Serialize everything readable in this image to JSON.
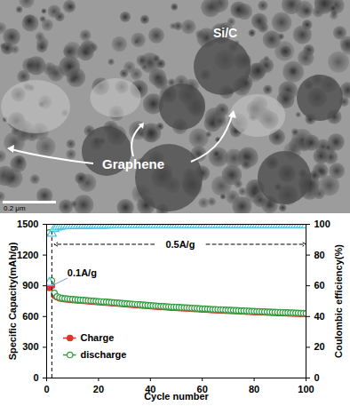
{
  "chart_data": {
    "type": "scatter",
    "x_label": "Cycle number",
    "y_label": "Specific Capacity(mAh/g)",
    "y2_label": "Coulombic efficiency(%)",
    "x": [
      1,
      2,
      3,
      4,
      5,
      6,
      7,
      8,
      9,
      10,
      11,
      12,
      13,
      14,
      15,
      16,
      17,
      18,
      19,
      20,
      21,
      22,
      23,
      24,
      25,
      26,
      27,
      28,
      29,
      30,
      31,
      32,
      33,
      34,
      35,
      36,
      37,
      38,
      39,
      40,
      41,
      42,
      43,
      44,
      45,
      46,
      47,
      48,
      49,
      50,
      51,
      52,
      53,
      54,
      55,
      56,
      57,
      58,
      59,
      60,
      61,
      62,
      63,
      64,
      65,
      66,
      67,
      68,
      69,
      70,
      71,
      72,
      73,
      74,
      75,
      76,
      77,
      78,
      79,
      80,
      81,
      82,
      83,
      84,
      85,
      86,
      87,
      88,
      89,
      90,
      91,
      92,
      93,
      94,
      95,
      96,
      97,
      98,
      99,
      100
    ],
    "series": [
      {
        "name": "Charge",
        "color": "#e8312a",
        "marker": "circle",
        "values": [
          880,
          900,
          805,
          789,
          779,
          774,
          770,
          767,
          764,
          762,
          760,
          758,
          756,
          754,
          752,
          750,
          748,
          746,
          744,
          742,
          740,
          738,
          736,
          734,
          732,
          730,
          728,
          726,
          724,
          722,
          720,
          718,
          716,
          714,
          712,
          710,
          708,
          706,
          704,
          702,
          700,
          698,
          696,
          694,
          693,
          692,
          690,
          688,
          687,
          686,
          684,
          682,
          681,
          680,
          678,
          676,
          675,
          674,
          672,
          670,
          669,
          668,
          666,
          664,
          663,
          662,
          661,
          660,
          658,
          657,
          656,
          655,
          654,
          652,
          651,
          650,
          649,
          648,
          646,
          645,
          644,
          643,
          642,
          641,
          640,
          639,
          638,
          637,
          636,
          635,
          634,
          633,
          632,
          631,
          630,
          629,
          628,
          627,
          626,
          625
        ]
      },
      {
        "name": "discharge",
        "color": "#2e9e3e",
        "marker": "circle_open",
        "values": [
          1420,
          950,
          830,
          795,
          785,
          780,
          776,
          773,
          770,
          768,
          766,
          764,
          762,
          760,
          758,
          756,
          754,
          752,
          750,
          748,
          746,
          744,
          742,
          740,
          738,
          736,
          734,
          732,
          730,
          728,
          726,
          724,
          722,
          720,
          718,
          716,
          714,
          712,
          710,
          708,
          706,
          704,
          702,
          700,
          699,
          698,
          696,
          694,
          693,
          692,
          690,
          688,
          687,
          686,
          684,
          682,
          681,
          680,
          678,
          676,
          675,
          674,
          672,
          670,
          669,
          668,
          667,
          666,
          664,
          663,
          662,
          661,
          660,
          658,
          657,
          656,
          655,
          654,
          652,
          651,
          650,
          649,
          648,
          647,
          646,
          645,
          644,
          643,
          642,
          641,
          640,
          639,
          638,
          637,
          636,
          635,
          634,
          633,
          632,
          631
        ]
      },
      {
        "color": "#4fc3e0",
        "marker": "triangle_open",
        "axis": "y2",
        "values": [
          62,
          94,
          97,
          98,
          98.5,
          98.8,
          99,
          99,
          99,
          99.1,
          99.1,
          99.1,
          99.2,
          99.2,
          99.2,
          99.2,
          99.3,
          99.3,
          99.3,
          99.3,
          99.3,
          99.3,
          99.3,
          99.3,
          99.4,
          99.4,
          99.4,
          99.4,
          99.4,
          99.4,
          99.4,
          99.4,
          99.4,
          99.4,
          99.4,
          99.4,
          99.4,
          99.4,
          99.4,
          99.4,
          99.4,
          99.4,
          99.4,
          99.4,
          99.4,
          99.4,
          99.4,
          99.4,
          99.4,
          99.4,
          99.5,
          99.5,
          99.5,
          99.5,
          99.5,
          99.5,
          99.5,
          99.5,
          99.5,
          99.5,
          99.5,
          99.5,
          99.5,
          99.5,
          99.5,
          99.5,
          99.5,
          99.5,
          99.5,
          99.5,
          99.5,
          99.5,
          99.5,
          99.5,
          99.5,
          99.5,
          99.5,
          99.5,
          99.5,
          99.5,
          99.5,
          99.5,
          99.5,
          99.5,
          99.5,
          99.5,
          99.5,
          99.5,
          99.5,
          99.5,
          99.5,
          99.5,
          99.5,
          99.5,
          99.5,
          99.5,
          99.5,
          99.5,
          99.5,
          99.5
        ]
      }
    ],
    "rate_segments": [
      {
        "label": "0.1A/g",
        "cycles": [
          1,
          2
        ]
      },
      {
        "label": "0.5A/g",
        "cycles": [
          3,
          100
        ]
      }
    ],
    "xlim": [
      0,
      100
    ],
    "xticks": [
      0,
      20,
      40,
      60,
      80,
      100
    ],
    "ylim": [
      0,
      1500
    ],
    "yticks": [
      0,
      300,
      600,
      900,
      1200,
      1500
    ],
    "y2lim": [
      0,
      100
    ],
    "y2ticks": [
      0,
      20,
      40,
      60,
      80,
      100
    ],
    "legend": "lower left",
    "grid": false
  },
  "micrograph": {
    "labels": [
      "Si/C",
      "Graphene"
    ],
    "scale_bar": "0.2 μm"
  }
}
